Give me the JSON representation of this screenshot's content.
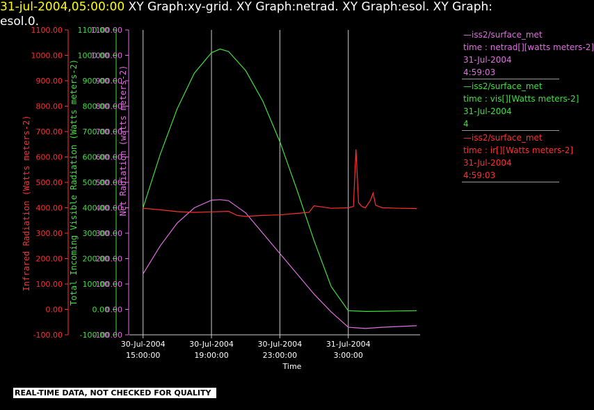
{
  "header": {
    "timestamp": "31-jul-2004,05:00:00",
    "graphs": "  XY Graph:xy-grid.  XY Graph:netrad.  XY Graph:esol.  XY Graph:",
    "graphs_line2": "esol.0."
  },
  "notice": "REAL-TIME DATA, NOT CHECKED FOR QUALITY",
  "legend": [
    {
      "source": "—iss2/surface_met",
      "variable": "time : netrad[][watts meters-2]",
      "date": "31-Jul-2004",
      "time": "4:59:03",
      "color": "#e070e0"
    },
    {
      "source": "—iss2/surface_met",
      "variable": "time : vis[][Watts meters-2]",
      "date": "31-Jul-2004",
      "time": "4",
      "color": "#40e040"
    },
    {
      "source": "—iss2/surface_met",
      "variable": "time : ir[][Watts meters-2]",
      "date": "31-Jul-2004",
      "time": "4:59:03",
      "color": "#ff3030"
    }
  ],
  "chart_data": {
    "type": "line",
    "xlabel": "Time",
    "x_ticks": [
      {
        "hours": 15,
        "line1": "30-Jul-2004",
        "line2": "15:00:00"
      },
      {
        "hours": 19,
        "line1": "30-Jul-2004",
        "line2": "19:00:00"
      },
      {
        "hours": 23,
        "line1": "30-Jul-2004",
        "line2": "23:00:00"
      },
      {
        "hours": 27,
        "line1": "31-Jul-2004",
        "line2": "3:00:00"
      }
    ],
    "xlim_hours": [
      14.2,
      31.2
    ],
    "y_ticks": [
      "1100.00",
      "1000.00",
      "900.00",
      "800.00",
      "700.00",
      "600.00",
      "500.00",
      "400.00",
      "300.00",
      "200.00",
      "100.00",
      "0.00",
      "-100.00"
    ],
    "ylim": [
      -100,
      1100
    ],
    "axes": [
      {
        "label": "Infrared Radiation (Watts meters-2)",
        "color": "#ff3030"
      },
      {
        "label": "Total Incoming Visible Radiation (Watts meters-2)",
        "color": "#40e040"
      },
      {
        "label": "Net Radiation (watts meters-2)",
        "color": "#e070e0"
      }
    ],
    "series": [
      {
        "color": "#40e040",
        "x_hours": [
          15,
          16,
          17,
          18,
          19,
          19.5,
          20,
          21,
          22,
          23,
          24,
          25,
          26,
          27,
          28,
          29,
          30,
          31
        ],
        "values": [
          400,
          610,
          790,
          930,
          1010,
          1025,
          1015,
          940,
          820,
          660,
          470,
          270,
          90,
          -5,
          -8,
          -7,
          -6,
          -5
        ]
      },
      {
        "color": "#e070e0",
        "x_hours": [
          15,
          16,
          17,
          18,
          19,
          19.5,
          20,
          21,
          22,
          23,
          24,
          25,
          26,
          27,
          28,
          29,
          30,
          31
        ],
        "values": [
          140,
          250,
          340,
          400,
          430,
          432,
          428,
          380,
          300,
          220,
          140,
          60,
          -10,
          -70,
          -75,
          -70,
          -67,
          -64
        ]
      },
      {
        "color": "#ff3030",
        "x_hours": [
          15,
          16,
          17,
          18,
          19,
          20,
          20.5,
          21,
          22,
          23,
          24,
          24.7,
          25,
          26,
          27,
          27.3,
          27.45,
          27.6,
          27.8,
          28,
          28.3,
          28.45,
          28.6,
          29,
          30,
          31
        ],
        "values": [
          398,
          392,
          385,
          382,
          384,
          386,
          370,
          366,
          370,
          372,
          378,
          382,
          408,
          398,
          400,
          405,
          630,
          420,
          405,
          400,
          430,
          458,
          410,
          400,
          398,
          397
        ]
      }
    ]
  }
}
